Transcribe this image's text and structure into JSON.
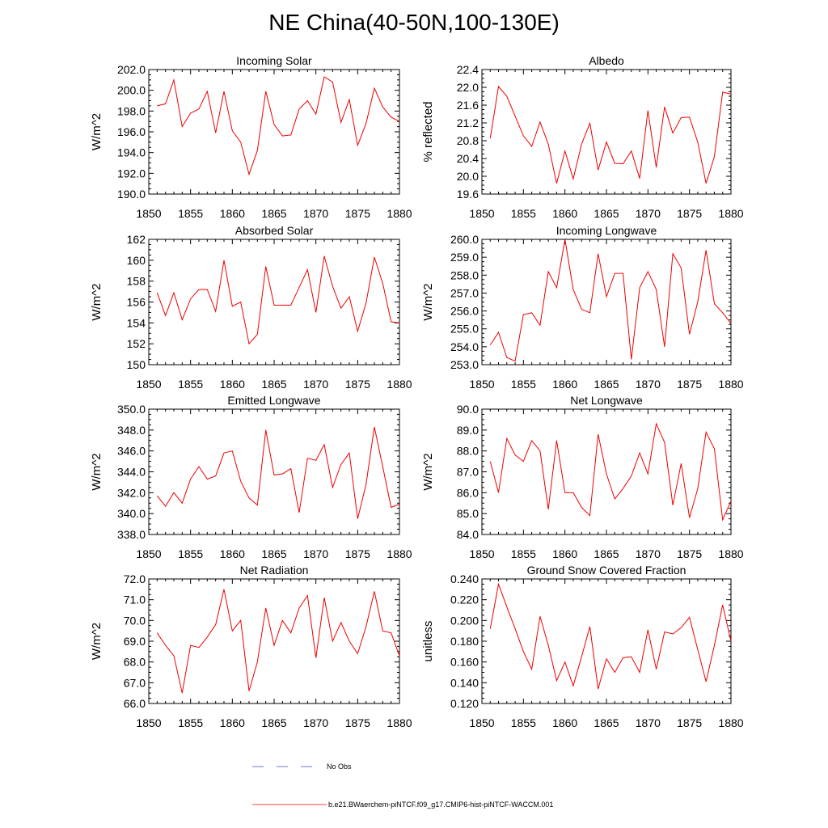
{
  "figure": {
    "title": "NE China(40-50N,100-130E)"
  },
  "legend": {
    "entries": [
      {
        "label": "No Obs",
        "color": "#3a4fc4",
        "style": "dashed"
      },
      {
        "label": "b.e21.BWaerchem-piNTCF.f09_g17.CMIP6-hist-piNTCF-WACCM.001",
        "color": "#ee0000",
        "style": "solid"
      }
    ]
  },
  "chart_data": [
    {
      "type": "line",
      "title": "Incoming Solar",
      "ylabel": "W/m^2",
      "xlim": [
        1850,
        1880
      ],
      "ylim": [
        190,
        202
      ],
      "x_ticks": [
        1850,
        1855,
        1860,
        1865,
        1870,
        1875,
        1880
      ],
      "y_ticks": [
        190.0,
        192.0,
        194.0,
        196.0,
        198.0,
        200.0,
        202.0
      ],
      "y_tick_labels": [
        "190.0",
        "192.0",
        "194.0",
        "196.0",
        "198.0",
        "200.0",
        "202.0"
      ],
      "series": [
        {
          "color": "#ee0000",
          "x": [
            1851,
            1852,
            1853,
            1854,
            1855,
            1856,
            1857,
            1858,
            1859,
            1860,
            1861,
            1862,
            1863,
            1864,
            1865,
            1866,
            1867,
            1868,
            1869,
            1870,
            1871,
            1872,
            1873,
            1874,
            1875,
            1876,
            1877,
            1878,
            1879,
            1880
          ],
          "values": [
            198.5,
            198.7,
            201.0,
            196.5,
            197.8,
            198.2,
            199.9,
            195.9,
            199.9,
            196.1,
            195.0,
            191.9,
            194.2,
            199.9,
            196.7,
            195.6,
            195.7,
            198.2,
            199.0,
            197.7,
            201.3,
            200.8,
            196.9,
            199.1,
            194.7,
            196.8,
            200.2,
            198.4,
            197.4,
            197.0
          ]
        }
      ]
    },
    {
      "type": "line",
      "title": "Albedo",
      "ylabel": "% reflected",
      "xlim": [
        1850,
        1880
      ],
      "ylim": [
        19.6,
        22.4
      ],
      "x_ticks": [
        1850,
        1855,
        1860,
        1865,
        1870,
        1875,
        1880
      ],
      "y_ticks": [
        19.6,
        20.0,
        20.4,
        20.8,
        21.2,
        21.6,
        22.0,
        22.4
      ],
      "y_tick_labels": [
        "19.6",
        "20.0",
        "20.4",
        "20.8",
        "21.2",
        "21.6",
        "22.0",
        "22.4"
      ],
      "series": [
        {
          "color": "#ee0000",
          "x": [
            1851,
            1852,
            1853,
            1854,
            1855,
            1856,
            1857,
            1858,
            1859,
            1860,
            1861,
            1862,
            1863,
            1864,
            1865,
            1866,
            1867,
            1868,
            1869,
            1870,
            1871,
            1872,
            1873,
            1874,
            1875,
            1876,
            1877,
            1878,
            1879,
            1880
          ],
          "values": [
            20.85,
            22.02,
            21.8,
            21.35,
            20.91,
            20.67,
            21.22,
            20.72,
            19.84,
            20.57,
            19.94,
            20.72,
            21.19,
            20.14,
            20.77,
            20.29,
            20.28,
            20.57,
            19.95,
            21.48,
            20.2,
            21.56,
            20.97,
            21.32,
            21.33,
            20.77,
            19.84,
            20.44,
            21.89,
            21.85
          ]
        }
      ]
    },
    {
      "type": "line",
      "title": "Absorbed Solar",
      "ylabel": "W/m^2",
      "xlim": [
        1850,
        1880
      ],
      "ylim": [
        150,
        162
      ],
      "x_ticks": [
        1850,
        1855,
        1860,
        1865,
        1870,
        1875,
        1880
      ],
      "y_ticks": [
        150,
        152,
        154,
        156,
        158,
        160,
        162
      ],
      "y_tick_labels": [
        "150",
        "152",
        "154",
        "156",
        "158",
        "160",
        "162"
      ],
      "series": [
        {
          "color": "#ee0000",
          "x": [
            1851,
            1852,
            1853,
            1854,
            1855,
            1856,
            1857,
            1858,
            1859,
            1860,
            1861,
            1862,
            1863,
            1864,
            1865,
            1866,
            1867,
            1868,
            1869,
            1870,
            1871,
            1872,
            1873,
            1874,
            1875,
            1876,
            1877,
            1878,
            1879,
            1880
          ],
          "values": [
            156.9,
            154.7,
            156.9,
            154.3,
            156.3,
            157.2,
            157.2,
            155.1,
            160.0,
            155.6,
            156.0,
            152.0,
            152.9,
            159.4,
            155.7,
            155.7,
            155.7,
            157.4,
            159.1,
            155.0,
            160.4,
            157.5,
            155.4,
            156.5,
            153.2,
            155.9,
            160.3,
            157.8,
            154.1,
            154.0
          ]
        }
      ]
    },
    {
      "type": "line",
      "title": "Incoming Longwave",
      "ylabel": "W/m^2",
      "xlim": [
        1850,
        1880
      ],
      "ylim": [
        253,
        260
      ],
      "x_ticks": [
        1850,
        1855,
        1860,
        1865,
        1870,
        1875,
        1880
      ],
      "y_ticks": [
        253.0,
        254.0,
        255.0,
        256.0,
        257.0,
        258.0,
        259.0,
        260.0
      ],
      "y_tick_labels": [
        "253.0",
        "254.0",
        "255.0",
        "256.0",
        "257.0",
        "258.0",
        "259.0",
        "260.0"
      ],
      "series": [
        {
          "color": "#ee0000",
          "x": [
            1851,
            1852,
            1853,
            1854,
            1855,
            1856,
            1857,
            1858,
            1859,
            1860,
            1861,
            1862,
            1863,
            1864,
            1865,
            1866,
            1867,
            1868,
            1869,
            1870,
            1871,
            1872,
            1873,
            1874,
            1875,
            1876,
            1877,
            1878,
            1879,
            1880
          ],
          "values": [
            254.1,
            254.8,
            253.4,
            253.2,
            255.8,
            255.9,
            255.2,
            258.2,
            257.3,
            260.0,
            257.2,
            256.1,
            255.9,
            259.2,
            256.8,
            258.1,
            258.1,
            253.3,
            257.3,
            258.2,
            257.2,
            254.0,
            259.2,
            258.4,
            254.7,
            256.5,
            259.4,
            256.4,
            255.9,
            255.3
          ]
        }
      ]
    },
    {
      "type": "line",
      "title": "Emitted Longwave",
      "ylabel": "W/m^2",
      "xlim": [
        1850,
        1880
      ],
      "ylim": [
        338,
        350
      ],
      "x_ticks": [
        1850,
        1855,
        1860,
        1865,
        1870,
        1875,
        1880
      ],
      "y_ticks": [
        338.0,
        340.0,
        342.0,
        344.0,
        346.0,
        348.0,
        350.0
      ],
      "y_tick_labels": [
        "338.0",
        "340.0",
        "342.0",
        "344.0",
        "346.0",
        "348.0",
        "350.0"
      ],
      "series": [
        {
          "color": "#ee0000",
          "x": [
            1851,
            1852,
            1853,
            1854,
            1855,
            1856,
            1857,
            1858,
            1859,
            1860,
            1861,
            1862,
            1863,
            1864,
            1865,
            1866,
            1867,
            1868,
            1869,
            1870,
            1871,
            1872,
            1873,
            1874,
            1875,
            1876,
            1877,
            1878,
            1879,
            1880
          ],
          "values": [
            341.7,
            340.7,
            342.0,
            341.0,
            343.3,
            344.5,
            343.3,
            343.6,
            345.8,
            346.0,
            343.1,
            341.5,
            340.8,
            348.0,
            343.7,
            343.8,
            344.3,
            340.1,
            345.3,
            345.1,
            346.6,
            342.5,
            344.7,
            345.8,
            339.5,
            342.8,
            348.3,
            344.5,
            340.6,
            340.9
          ]
        }
      ]
    },
    {
      "type": "line",
      "title": "Net Longwave",
      "ylabel": "W/m^2",
      "xlim": [
        1850,
        1880
      ],
      "ylim": [
        84,
        90
      ],
      "x_ticks": [
        1850,
        1855,
        1860,
        1865,
        1870,
        1875,
        1880
      ],
      "y_ticks": [
        84.0,
        85.0,
        86.0,
        87.0,
        88.0,
        89.0,
        90.0
      ],
      "y_tick_labels": [
        "84.0",
        "85.0",
        "86.0",
        "87.0",
        "88.0",
        "89.0",
        "90.0"
      ],
      "series": [
        {
          "color": "#ee0000",
          "x": [
            1851,
            1852,
            1853,
            1854,
            1855,
            1856,
            1857,
            1858,
            1859,
            1860,
            1861,
            1862,
            1863,
            1864,
            1865,
            1866,
            1867,
            1868,
            1869,
            1870,
            1871,
            1872,
            1873,
            1874,
            1875,
            1876,
            1877,
            1878,
            1879,
            1880
          ],
          "values": [
            87.5,
            86.0,
            88.6,
            87.8,
            87.5,
            88.5,
            88.0,
            85.2,
            88.5,
            86.0,
            86.0,
            85.3,
            84.9,
            88.8,
            86.9,
            85.7,
            86.2,
            86.8,
            87.9,
            86.9,
            89.3,
            88.4,
            85.4,
            87.4,
            84.8,
            86.2,
            88.9,
            88.1,
            84.7,
            85.6
          ]
        }
      ]
    },
    {
      "type": "line",
      "title": "Net Radiation",
      "ylabel": "W/m^2",
      "xlim": [
        1850,
        1880
      ],
      "ylim": [
        66,
        72
      ],
      "x_ticks": [
        1850,
        1855,
        1860,
        1865,
        1870,
        1875,
        1880
      ],
      "y_ticks": [
        66.0,
        67.0,
        68.0,
        69.0,
        70.0,
        71.0,
        72.0
      ],
      "y_tick_labels": [
        "66.0",
        "67.0",
        "68.0",
        "69.0",
        "70.0",
        "71.0",
        "72.0"
      ],
      "series": [
        {
          "color": "#ee0000",
          "x": [
            1851,
            1852,
            1853,
            1854,
            1855,
            1856,
            1857,
            1858,
            1859,
            1860,
            1861,
            1862,
            1863,
            1864,
            1865,
            1866,
            1867,
            1868,
            1869,
            1870,
            1871,
            1872,
            1873,
            1874,
            1875,
            1876,
            1877,
            1878,
            1879,
            1880
          ],
          "values": [
            69.4,
            68.8,
            68.3,
            66.5,
            68.8,
            68.7,
            69.2,
            69.8,
            71.5,
            69.5,
            70.0,
            66.6,
            68.0,
            70.6,
            68.8,
            70.0,
            69.4,
            70.6,
            71.2,
            68.2,
            71.1,
            69.0,
            69.9,
            69.0,
            68.4,
            69.7,
            71.4,
            69.5,
            69.4,
            68.3
          ]
        }
      ]
    },
    {
      "type": "line",
      "title": "Ground Snow Covered Fraction",
      "ylabel": "unitless",
      "xlim": [
        1850,
        1880
      ],
      "ylim": [
        0.12,
        0.24
      ],
      "x_ticks": [
        1850,
        1855,
        1860,
        1865,
        1870,
        1875,
        1880
      ],
      "y_ticks": [
        0.12,
        0.14,
        0.16,
        0.18,
        0.2,
        0.22,
        0.24
      ],
      "y_tick_labels": [
        "0.120",
        "0.140",
        "0.160",
        "0.180",
        "0.200",
        "0.220",
        "0.240"
      ],
      "series": [
        {
          "color": "#ee0000",
          "x": [
            1851,
            1852,
            1853,
            1854,
            1855,
            1856,
            1857,
            1858,
            1859,
            1860,
            1861,
            1862,
            1863,
            1864,
            1865,
            1866,
            1867,
            1868,
            1869,
            1870,
            1871,
            1872,
            1873,
            1874,
            1875,
            1876,
            1877,
            1878,
            1879,
            1880
          ],
          "values": [
            0.192,
            0.235,
            0.213,
            0.192,
            0.17,
            0.153,
            0.204,
            0.176,
            0.142,
            0.16,
            0.137,
            0.165,
            0.194,
            0.134,
            0.163,
            0.15,
            0.164,
            0.165,
            0.15,
            0.191,
            0.153,
            0.189,
            0.187,
            0.193,
            0.203,
            0.172,
            0.141,
            0.176,
            0.215,
            0.18
          ]
        }
      ]
    }
  ]
}
